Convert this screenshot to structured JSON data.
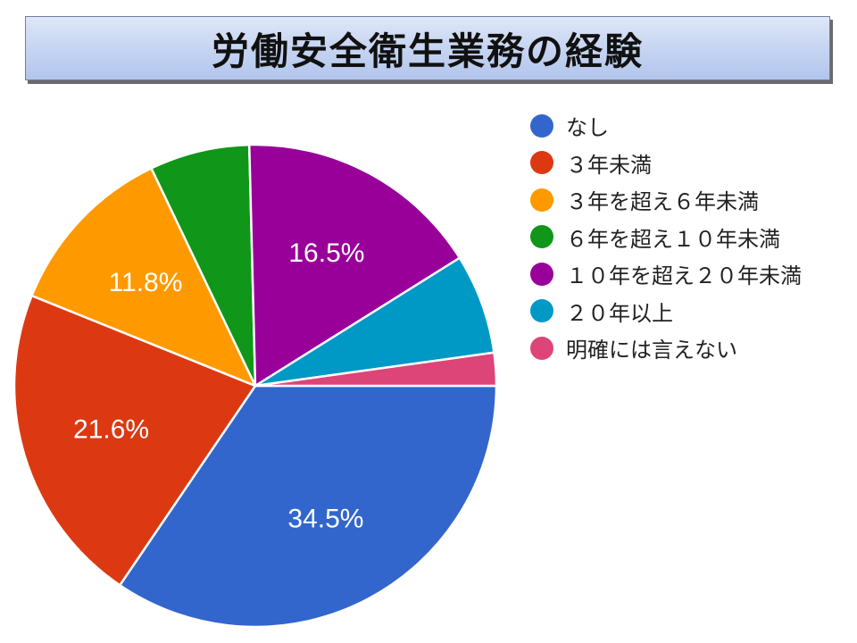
{
  "title": "労働安全衛生業務の経験",
  "chart_data": {
    "type": "pie",
    "title": "労働安全衛生業務の経験",
    "legend_position": "right",
    "categories": [
      "なし",
      "３年未満",
      "３年を超え６年未満",
      "６年を超え１０年未満",
      "１０年を超え２０年未満",
      "２０年以上",
      "明確には言えない"
    ],
    "values": [
      34.5,
      21.6,
      11.8,
      6.7,
      16.5,
      6.7,
      2.2
    ],
    "data_labels": [
      "34.5%",
      "21.6%",
      "11.8%",
      "",
      "16.5%",
      "",
      ""
    ],
    "colors": [
      "#3366cc",
      "#dc3912",
      "#ff9900",
      "#109618",
      "#990099",
      "#0099c6",
      "#dd4477"
    ]
  }
}
